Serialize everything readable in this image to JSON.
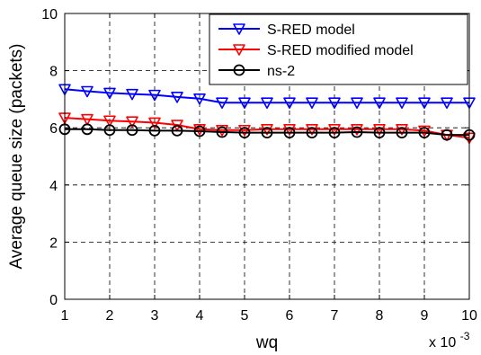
{
  "chart_data": {
    "type": "line",
    "title": "",
    "xlabel": "wq",
    "ylabel": "Average queue size (packets)",
    "x_multiplier_label": "x 10",
    "x_multiplier_exponent": "-3",
    "xlim": [
      1,
      10
    ],
    "ylim": [
      0,
      10
    ],
    "x_ticks": [
      1,
      2,
      3,
      4,
      5,
      6,
      7,
      8,
      9,
      10
    ],
    "x_tick_labels": [
      "1",
      "2",
      "3",
      "4",
      "5",
      "6",
      "7",
      "8",
      "9",
      "10"
    ],
    "y_ticks": [
      0,
      2,
      4,
      6,
      8,
      10
    ],
    "y_tick_labels": [
      "0",
      "2",
      "4",
      "6",
      "8",
      "10"
    ],
    "grid": true,
    "grid_style": "dashed",
    "legend_position": "top-right",
    "x": [
      1,
      1.5,
      2,
      2.5,
      3,
      3.5,
      4,
      4.5,
      5,
      5.5,
      6,
      6.5,
      7,
      7.5,
      8,
      8.5,
      9,
      9.5,
      10
    ],
    "series": [
      {
        "name": "S-RED model",
        "color": "#0000ff",
        "marker": "triangle-down",
        "values": [
          7.35,
          7.28,
          7.22,
          7.18,
          7.15,
          7.08,
          7.02,
          6.88,
          6.88,
          6.88,
          6.88,
          6.88,
          6.88,
          6.88,
          6.88,
          6.88,
          6.88,
          6.88,
          6.88
        ]
      },
      {
        "name": "S-RED modified model",
        "color": "#ff0000",
        "marker": "triangle-down",
        "values": [
          6.35,
          6.3,
          6.25,
          6.22,
          6.18,
          6.1,
          5.95,
          5.92,
          5.92,
          5.95,
          5.95,
          5.95,
          5.95,
          5.95,
          5.95,
          5.95,
          5.9,
          5.75,
          5.65
        ]
      },
      {
        "name": "ns-2",
        "color": "#000000",
        "marker": "circle",
        "values": [
          5.95,
          5.95,
          5.92,
          5.92,
          5.9,
          5.9,
          5.88,
          5.85,
          5.83,
          5.83,
          5.83,
          5.83,
          5.83,
          5.85,
          5.83,
          5.83,
          5.83,
          5.75,
          5.75
        ]
      }
    ]
  }
}
